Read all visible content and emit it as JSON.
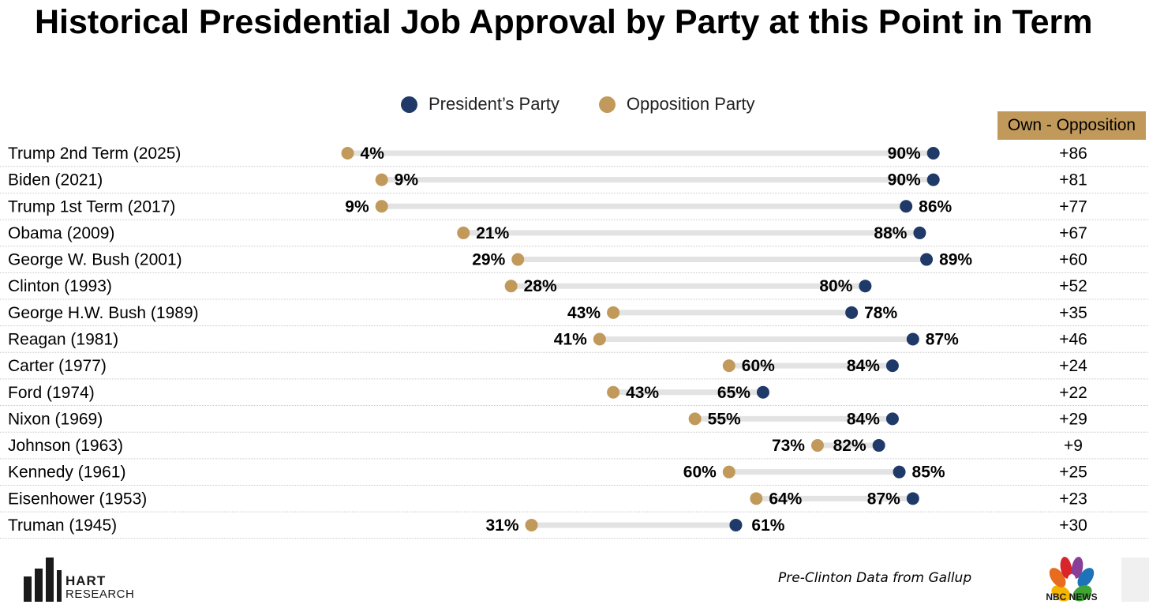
{
  "title": "Historical Presidential Job Approval by Party at this Point in Term",
  "legend": {
    "president": "President’s Party",
    "opposition": "Opposition Party"
  },
  "diff_header": "Own - Opposition",
  "footer_note": "Pre-Clinton Data from Gallup",
  "logos": {
    "hart_line1": "HART",
    "hart_line2": "RESEARCH",
    "nbc": "NBC NEWS"
  },
  "colors": {
    "president": "#1f3a68",
    "opposition": "#c19a5b",
    "connector": "#e3e3e3",
    "separator": "#c8c8c8"
  },
  "chart_data": {
    "type": "dumbbell",
    "title": "Historical Presidential Job Approval by Party at this Point in Term",
    "xlim": [
      0,
      100
    ],
    "series": [
      {
        "name": "President’s Party",
        "values": [
          90,
          90,
          86,
          88,
          89,
          80,
          78,
          87,
          84,
          65,
          84,
          82,
          85,
          87,
          61
        ]
      },
      {
        "name": "Opposition Party",
        "values": [
          4,
          9,
          9,
          21,
          29,
          28,
          43,
          41,
          60,
          43,
          55,
          73,
          60,
          64,
          31
        ]
      }
    ],
    "categories": [
      "Trump 2nd Term (2025)",
      "Biden (2021)",
      "Trump 1st Term (2017)",
      "Obama (2009)",
      "George W. Bush (2001)",
      "Clinton (1993)",
      "George H.W. Bush (1989)",
      "Reagan (1981)",
      "Carter (1977)",
      "Ford (1974)",
      "Nixon (1969)",
      "Johnson (1963)",
      "Kennedy (1961)",
      "Eisenhower (1953)",
      "Truman (1945)"
    ],
    "diffs": [
      "+86",
      "+81",
      "+77",
      "+67",
      "+60",
      "+52",
      "+35",
      "+46",
      "+24",
      "+22",
      "+29",
      "+9",
      "+25",
      "+23",
      "+30"
    ]
  }
}
